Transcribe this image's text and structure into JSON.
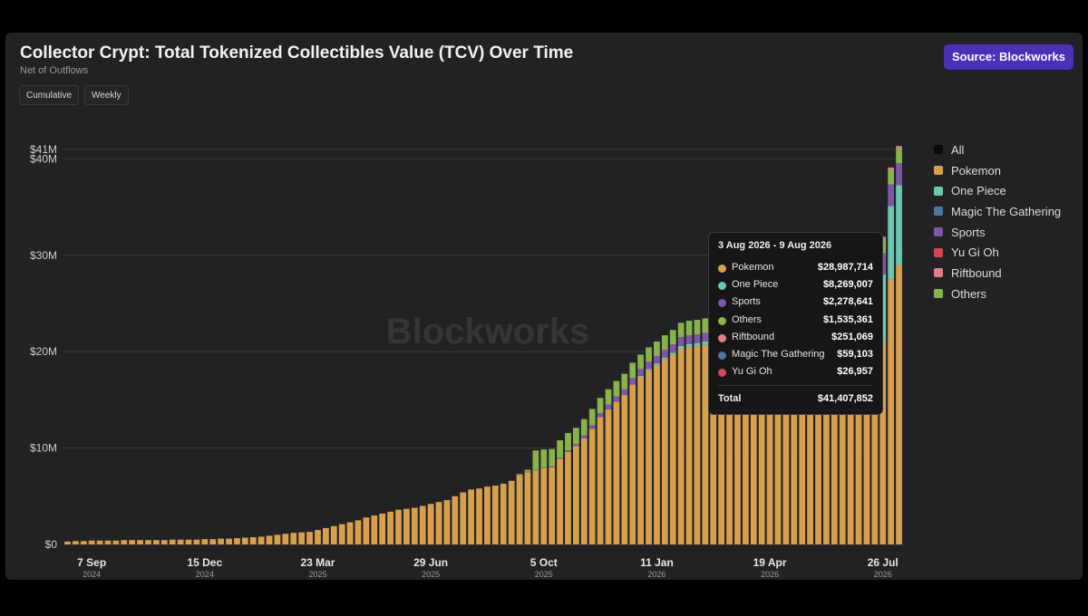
{
  "header": {
    "title": "Collector Crypt: Total Tokenized Collectibles Value (TCV) Over Time",
    "subtitle": "Net of Outflows",
    "buttons": {
      "cumulative": "Cumulative",
      "weekly": "Weekly"
    },
    "source": "Source: Blockworks"
  },
  "watermark": "Blockworks",
  "tooltip": {
    "title": "3 Aug 2026 - 9 Aug 2026",
    "rows": [
      {
        "name": "Pokemon",
        "value": "$28,987,714",
        "color": "#d6a04e"
      },
      {
        "name": "One Piece",
        "value": "$8,269,007",
        "color": "#6bc8b0"
      },
      {
        "name": "Sports",
        "value": "$2,278,641",
        "color": "#7d56a8"
      },
      {
        "name": "Others",
        "value": "$1,535,361",
        "color": "#87b24c"
      },
      {
        "name": "Riftbound",
        "value": "$251,069",
        "color": "#df7f89"
      },
      {
        "name": "Magic The Gathering",
        "value": "$59,103",
        "color": "#4f76a2"
      },
      {
        "name": "Yu Gi Oh",
        "value": "$26,957",
        "color": "#cf4b4f"
      }
    ],
    "total_label": "Total",
    "total_value": "$41,407,852"
  },
  "chart_data": {
    "type": "bar",
    "stacked": true,
    "title": "Collector Crypt: Total Tokenized Collectibles Value (TCV) Over Time",
    "subtitle": "Net of Outflows",
    "ylim": [
      0,
      41000000
    ],
    "y_ticks": [
      {
        "value": 0,
        "label": "$0"
      },
      {
        "value": 10000000,
        "label": "$10M"
      },
      {
        "value": 20000000,
        "label": "$20M"
      },
      {
        "value": 30000000,
        "label": "$30M"
      },
      {
        "value": 40000000,
        "label": "$40M"
      },
      {
        "value": 41000000,
        "label": "$41M"
      }
    ],
    "x_ticks": [
      {
        "index": 3,
        "label": "7 Sep",
        "year": "2024"
      },
      {
        "index": 17,
        "label": "15 Dec",
        "year": "2024"
      },
      {
        "index": 31,
        "label": "23 Mar",
        "year": "2025"
      },
      {
        "index": 45,
        "label": "29 Jun",
        "year": "2025"
      },
      {
        "index": 59,
        "label": "5 Oct",
        "year": "2025"
      },
      {
        "index": 73,
        "label": "11 Jan",
        "year": "2026"
      },
      {
        "index": 87,
        "label": "19 Apr",
        "year": "2026"
      },
      {
        "index": 101,
        "label": "26 Jul",
        "year": "2026"
      }
    ],
    "legend": {
      "position": "right",
      "items": [
        {
          "name": "All",
          "color": "#0a0a0a"
        },
        {
          "name": "Pokemon",
          "color": "#d6a04e"
        },
        {
          "name": "One Piece",
          "color": "#6bc8b0"
        },
        {
          "name": "Magic The Gathering",
          "color": "#4f76a2"
        },
        {
          "name": "Sports",
          "color": "#7d56a8"
        },
        {
          "name": "Yu Gi Oh",
          "color": "#cf4b4f"
        },
        {
          "name": "Riftbound",
          "color": "#df7f89"
        },
        {
          "name": "Others",
          "color": "#87b24c"
        }
      ]
    },
    "weeks": 104,
    "series": [
      {
        "name": "Pokemon",
        "color": "#d6a04e",
        "values": [
          0.3,
          0.35,
          0.35,
          0.4,
          0.4,
          0.4,
          0.4,
          0.45,
          0.45,
          0.45,
          0.45,
          0.45,
          0.45,
          0.5,
          0.5,
          0.5,
          0.5,
          0.55,
          0.55,
          0.6,
          0.6,
          0.65,
          0.7,
          0.75,
          0.8,
          0.9,
          1.0,
          1.1,
          1.2,
          1.25,
          1.3,
          1.5,
          1.7,
          1.9,
          2.1,
          2.3,
          2.5,
          2.8,
          3.0,
          3.2,
          3.4,
          3.6,
          3.7,
          3.8,
          4.0,
          4.2,
          4.4,
          4.6,
          5.0,
          5.4,
          5.7,
          5.8,
          6.0,
          6.1,
          6.3,
          6.6,
          7.2,
          7.5,
          7.7,
          7.9,
          8.0,
          8.9,
          9.6,
          10.2,
          11.0,
          12.0,
          13.2,
          14.0,
          14.8,
          15.5,
          16.6,
          17.4,
          18.1,
          18.6,
          19.2,
          19.7,
          20.3,
          20.5,
          20.6,
          20.7,
          21.0,
          20.6,
          20.7,
          20.6,
          20.8,
          20.8,
          20.7,
          20.8,
          20.8,
          20.9,
          20.7,
          20.9,
          20.9,
          20.8,
          20.8,
          20.8,
          20.9,
          20.9,
          20.9,
          20.9,
          21.0,
          21.0,
          27.5,
          28.99
        ]
      },
      {
        "name": "One Piece",
        "color": "#6bc8b0",
        "values": [
          0,
          0,
          0,
          0,
          0,
          0,
          0,
          0,
          0,
          0,
          0,
          0,
          0,
          0,
          0,
          0,
          0,
          0,
          0,
          0,
          0,
          0,
          0,
          0,
          0,
          0,
          0,
          0,
          0,
          0,
          0,
          0,
          0,
          0,
          0,
          0,
          0,
          0,
          0,
          0,
          0,
          0,
          0,
          0,
          0,
          0,
          0,
          0,
          0,
          0,
          0,
          0,
          0,
          0,
          0,
          0,
          0,
          0,
          0,
          0,
          0,
          0,
          0,
          0,
          0,
          0,
          0,
          0,
          0,
          0,
          0,
          0.1,
          0.1,
          0.15,
          0.2,
          0.2,
          0.3,
          0.3,
          0.3,
          0.35,
          0.4,
          0.4,
          0.45,
          0.5,
          0.6,
          0.7,
          0.8,
          0.9,
          1.0,
          1.2,
          1.4,
          1.6,
          1.8,
          2.1,
          2.3,
          2.6,
          3.0,
          3.4,
          4.0,
          4.8,
          5.8,
          7.0,
          7.6,
          8.27
        ]
      },
      {
        "name": "Sports",
        "color": "#7d56a8",
        "values": [
          0,
          0,
          0,
          0,
          0,
          0,
          0,
          0,
          0,
          0,
          0,
          0,
          0,
          0,
          0,
          0,
          0,
          0,
          0,
          0,
          0,
          0,
          0,
          0,
          0,
          0,
          0,
          0,
          0,
          0,
          0,
          0,
          0,
          0,
          0,
          0,
          0,
          0,
          0,
          0,
          0,
          0,
          0,
          0,
          0,
          0,
          0,
          0,
          0,
          0,
          0,
          0,
          0,
          0,
          0,
          0,
          0,
          0.05,
          0.05,
          0.05,
          0.1,
          0.1,
          0.15,
          0.2,
          0.3,
          0.35,
          0.4,
          0.5,
          0.55,
          0.6,
          0.65,
          0.7,
          0.75,
          0.8,
          0.8,
          0.85,
          0.9,
          0.9,
          0.9,
          0.9,
          1.0,
          1.0,
          1.0,
          1.05,
          1.1,
          1.1,
          1.15,
          1.2,
          1.2,
          1.25,
          1.3,
          1.35,
          1.4,
          1.45,
          1.5,
          1.6,
          1.7,
          1.8,
          1.9,
          2.0,
          2.1,
          2.2,
          2.25,
          2.28
        ]
      },
      {
        "name": "Others",
        "color": "#87b24c",
        "values": [
          0,
          0,
          0,
          0,
          0,
          0,
          0,
          0,
          0,
          0,
          0,
          0,
          0,
          0,
          0,
          0,
          0,
          0,
          0,
          0,
          0,
          0,
          0,
          0,
          0,
          0,
          0,
          0,
          0,
          0,
          0,
          0,
          0,
          0,
          0,
          0,
          0,
          0,
          0,
          0,
          0,
          0,
          0,
          0,
          0,
          0,
          0,
          0,
          0,
          0,
          0,
          0,
          0,
          0,
          0,
          0,
          0.1,
          0.2,
          2.0,
          1.9,
          1.8,
          1.8,
          1.8,
          1.7,
          1.7,
          1.7,
          1.6,
          1.6,
          1.6,
          1.6,
          1.6,
          1.5,
          1.5,
          1.5,
          1.5,
          1.5,
          1.5,
          1.5,
          1.5,
          1.5,
          1.5,
          1.5,
          1.5,
          1.5,
          1.5,
          1.5,
          1.5,
          1.5,
          1.5,
          1.5,
          1.5,
          1.5,
          1.5,
          1.5,
          1.5,
          1.5,
          1.5,
          1.5,
          1.5,
          1.5,
          1.5,
          1.5,
          1.52,
          1.54
        ]
      },
      {
        "name": "Riftbound",
        "color": "#df7f89",
        "values": [
          0,
          0,
          0,
          0,
          0,
          0,
          0,
          0,
          0,
          0,
          0,
          0,
          0,
          0,
          0,
          0,
          0,
          0,
          0,
          0,
          0,
          0,
          0,
          0,
          0,
          0,
          0,
          0,
          0,
          0,
          0,
          0,
          0,
          0,
          0,
          0,
          0,
          0,
          0,
          0,
          0,
          0,
          0,
          0,
          0,
          0,
          0,
          0,
          0,
          0,
          0,
          0,
          0,
          0,
          0,
          0,
          0,
          0,
          0,
          0,
          0,
          0,
          0,
          0,
          0,
          0,
          0,
          0,
          0,
          0,
          0,
          0,
          0,
          0,
          0,
          0,
          0,
          0,
          0,
          0,
          0,
          0,
          0,
          0,
          0,
          0,
          0,
          0,
          0,
          0,
          0,
          0,
          0,
          0,
          0,
          0,
          0,
          0.05,
          0.1,
          0.15,
          0.2,
          0.22,
          0.24,
          0.25
        ]
      }
    ],
    "y_unit": "millions USD"
  }
}
